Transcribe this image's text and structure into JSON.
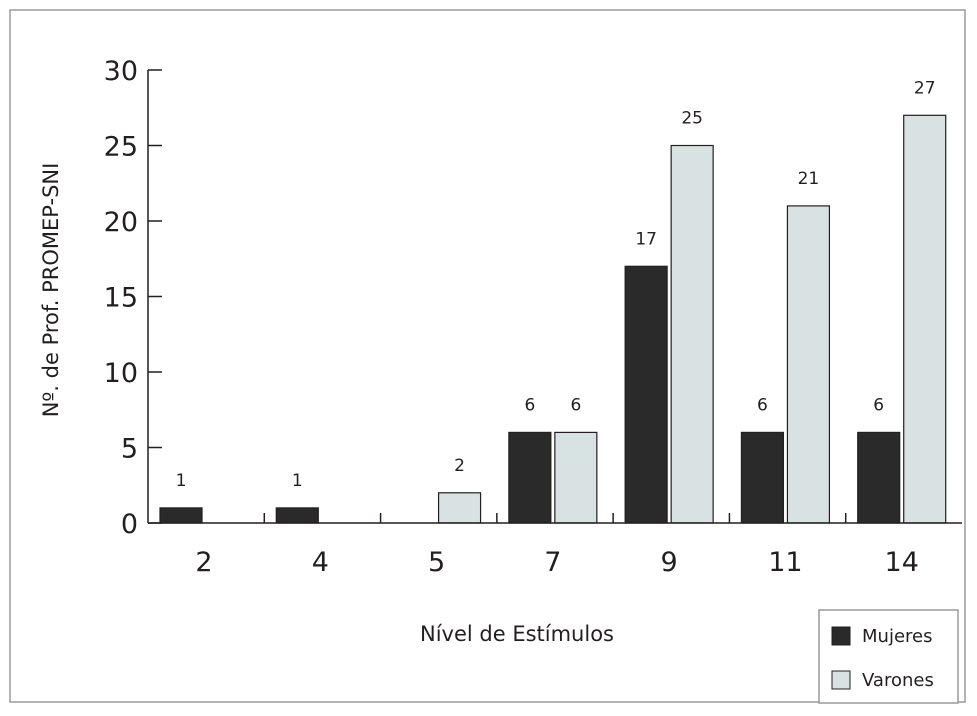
{
  "chart_data": {
    "type": "bar",
    "title": "",
    "xlabel": "Nível de Estímulos",
    "ylabel": "Nº. de Prof. PROMEP-SNI",
    "categories": [
      "2",
      "4",
      "5",
      "7",
      "9",
      "11",
      "14"
    ],
    "ylim": [
      0,
      30
    ],
    "yticks": [
      0,
      5,
      10,
      15,
      20,
      25,
      30
    ],
    "grid": false,
    "legend_position": "bottom-right",
    "series": [
      {
        "name": "Mujeres",
        "values": [
          1,
          1,
          0,
          6,
          17,
          6,
          6
        ],
        "labels": [
          "1",
          "1",
          "",
          "6",
          "17",
          "6",
          "6"
        ],
        "color": "#2b2a2b"
      },
      {
        "name": "Varones",
        "values": [
          0,
          0,
          2,
          6,
          25,
          21,
          27
        ],
        "labels": [
          "",
          "",
          "2",
          "6",
          "25",
          "21",
          "27"
        ],
        "color": "#d9e2e2"
      }
    ]
  }
}
